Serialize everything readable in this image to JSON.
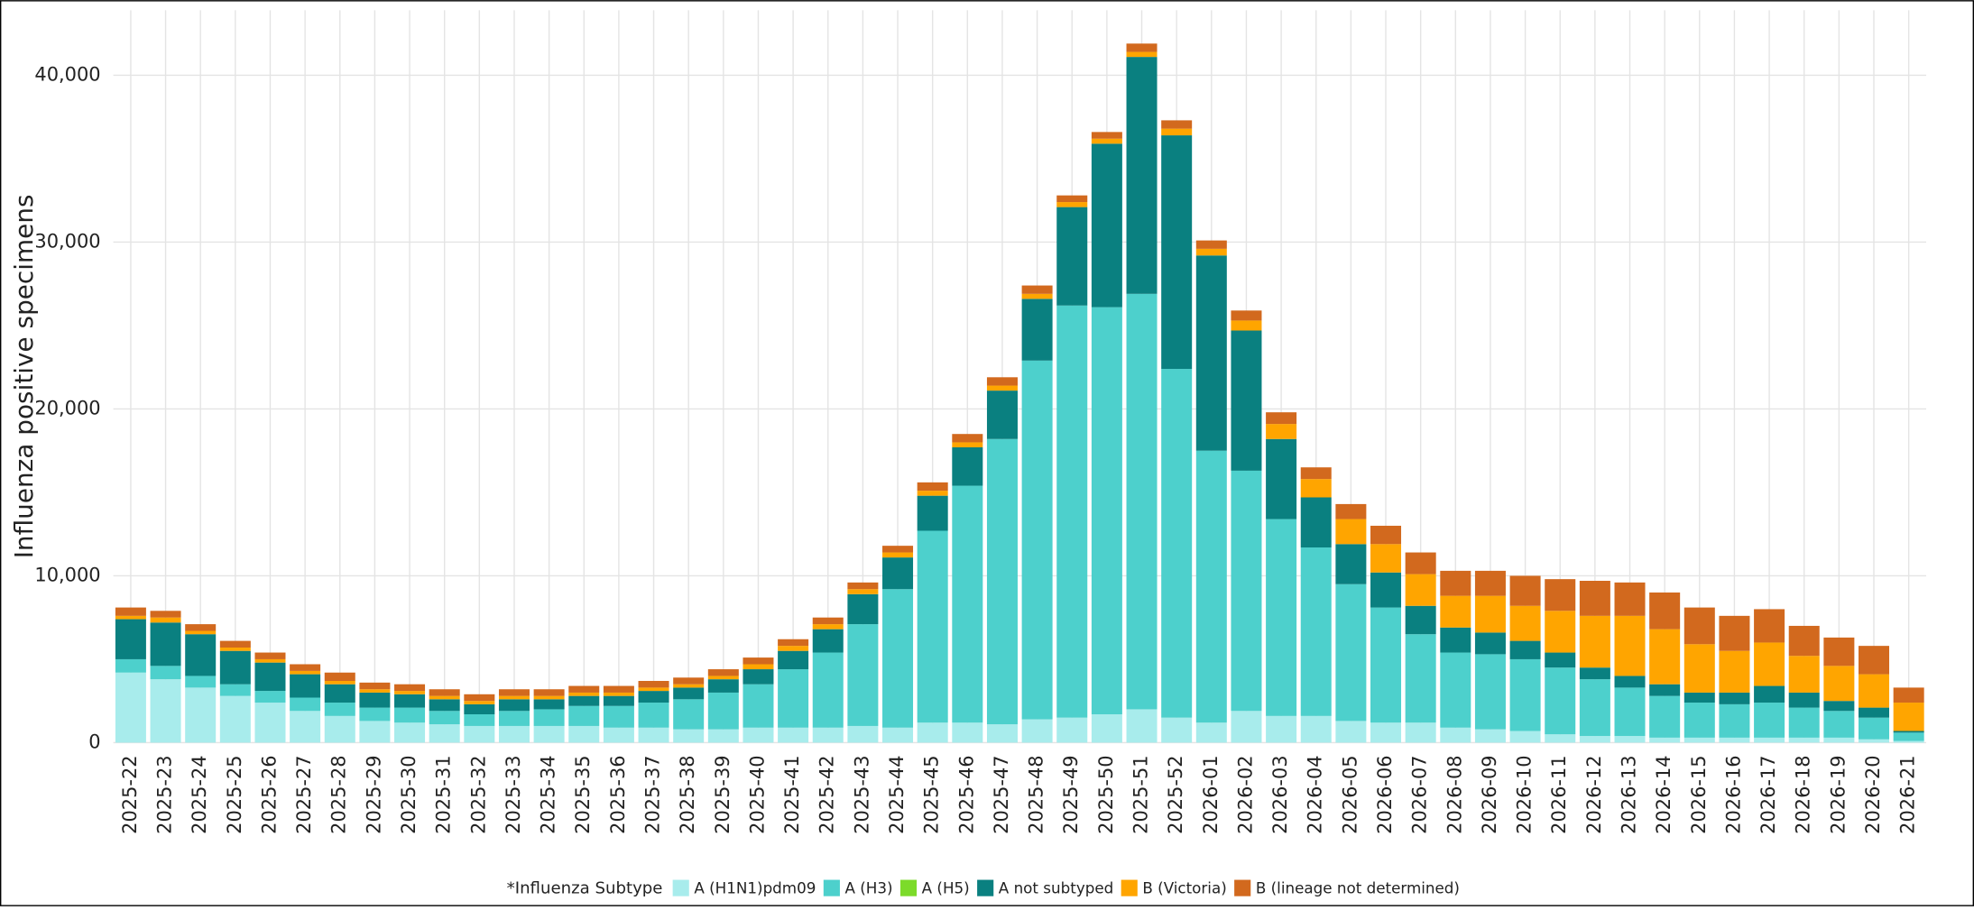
{
  "chart_data": {
    "type": "stacked_bar",
    "y_label": "Influenza positive specimens",
    "legend_title": "*Influenza Subtype",
    "categories": [
      "2025-22",
      "2025-23",
      "2025-24",
      "2025-25",
      "2025-26",
      "2025-27",
      "2025-28",
      "2025-29",
      "2025-30",
      "2025-31",
      "2025-32",
      "2025-33",
      "2025-34",
      "2025-35",
      "2025-36",
      "2025-37",
      "2025-38",
      "2025-39",
      "2025-40",
      "2025-41",
      "2025-42",
      "2025-43",
      "2025-44",
      "2025-45",
      "2025-46",
      "2025-47",
      "2025-48",
      "2025-49",
      "2025-50",
      "2025-51",
      "2025-52",
      "2026-01",
      "2026-02",
      "2026-03",
      "2026-04",
      "2026-05",
      "2026-06",
      "2026-07",
      "2026-08",
      "2026-09",
      "2026-10",
      "2026-11",
      "2026-12",
      "2026-13",
      "2026-14",
      "2026-15",
      "2026-16",
      "2026-17",
      "2026-18",
      "2026-19",
      "2026-20",
      "2026-21"
    ],
    "series": [
      {
        "name": "A (H1N1)pdm09",
        "color": "#a8ecec",
        "values": [
          4200,
          3800,
          3300,
          2800,
          2400,
          1900,
          1600,
          1300,
          1200,
          1100,
          1000,
          1000,
          1000,
          1000,
          900,
          900,
          800,
          800,
          900,
          900,
          900,
          1000,
          900,
          1200,
          1200,
          1100,
          1400,
          1500,
          1700,
          2000,
          1500,
          1200,
          1900,
          1600,
          1600,
          1300,
          1200,
          1200,
          900,
          800,
          700,
          500,
          400,
          400,
          300,
          300,
          300,
          300,
          300,
          300,
          200,
          100
        ]
      },
      {
        "name": "A (H3)",
        "color": "#4dd0cc",
        "values": [
          800,
          800,
          700,
          700,
          700,
          800,
          800,
          800,
          900,
          800,
          700,
          900,
          1000,
          1200,
          1300,
          1500,
          1800,
          2200,
          2600,
          3500,
          4500,
          6100,
          8300,
          11500,
          14200,
          17100,
          21500,
          24700,
          24400,
          24900,
          20900,
          16300,
          14400,
          11800,
          10100,
          8200,
          6900,
          5300,
          4500,
          4500,
          4300,
          4000,
          3400,
          2900,
          2500,
          2100,
          2000,
          2100,
          1800,
          1600,
          1300,
          500
        ]
      },
      {
        "name": "A (H5)",
        "color": "#7cdb2a",
        "values": [
          0,
          0,
          0,
          0,
          0,
          0,
          0,
          0,
          0,
          0,
          0,
          0,
          0,
          0,
          0,
          0,
          0,
          0,
          0,
          0,
          0,
          0,
          0,
          0,
          0,
          0,
          0,
          0,
          0,
          0,
          0,
          0,
          0,
          0,
          0,
          0,
          0,
          0,
          0,
          0,
          0,
          0,
          0,
          0,
          0,
          0,
          0,
          0,
          0,
          0,
          0,
          0
        ]
      },
      {
        "name": "A not subtyped",
        "color": "#0a8080",
        "values": [
          2400,
          2600,
          2500,
          2000,
          1700,
          1400,
          1100,
          900,
          800,
          700,
          600,
          700,
          600,
          600,
          600,
          700,
          700,
          800,
          900,
          1100,
          1400,
          1800,
          1900,
          2100,
          2300,
          2900,
          3700,
          5900,
          9800,
          14200,
          14000,
          11700,
          8400,
          4800,
          3000,
          2400,
          2100,
          1700,
          1500,
          1300,
          1100,
          900,
          700,
          700,
          700,
          600,
          700,
          1000,
          900,
          600,
          600,
          100
        ]
      },
      {
        "name": "B (Victoria)",
        "color": "#ffa500",
        "values": [
          200,
          300,
          200,
          200,
          200,
          200,
          200,
          200,
          200,
          200,
          200,
          200,
          200,
          200,
          200,
          200,
          200,
          200,
          300,
          300,
          300,
          300,
          300,
          300,
          300,
          300,
          300,
          300,
          300,
          300,
          400,
          400,
          600,
          900,
          1100,
          1500,
          1700,
          1900,
          1900,
          2200,
          2100,
          2500,
          3100,
          3600,
          3300,
          2900,
          2500,
          2600,
          2200,
          2100,
          2000,
          1700
        ]
      },
      {
        "name": "B (lineage not determined)",
        "color": "#d2691e",
        "values": [
          500,
          400,
          400,
          400,
          400,
          400,
          500,
          400,
          400,
          400,
          400,
          400,
          400,
          400,
          400,
          400,
          400,
          400,
          400,
          400,
          400,
          400,
          400,
          500,
          500,
          500,
          500,
          400,
          400,
          500,
          500,
          500,
          600,
          700,
          700,
          900,
          1100,
          1300,
          1500,
          1500,
          1800,
          1900,
          2100,
          2000,
          2200,
          2200,
          2100,
          2000,
          1800,
          1700,
          1700,
          900
        ]
      }
    ],
    "ylim": [
      0,
      43900
    ],
    "yticks": [
      0,
      {
        "value": 10000,
        "label": "10,000"
      },
      {
        "value": 20000,
        "label": "20,000"
      },
      {
        "value": 30000,
        "label": "30,000"
      },
      {
        "value": 40000,
        "label": "40,000"
      }
    ],
    "grid": true
  }
}
